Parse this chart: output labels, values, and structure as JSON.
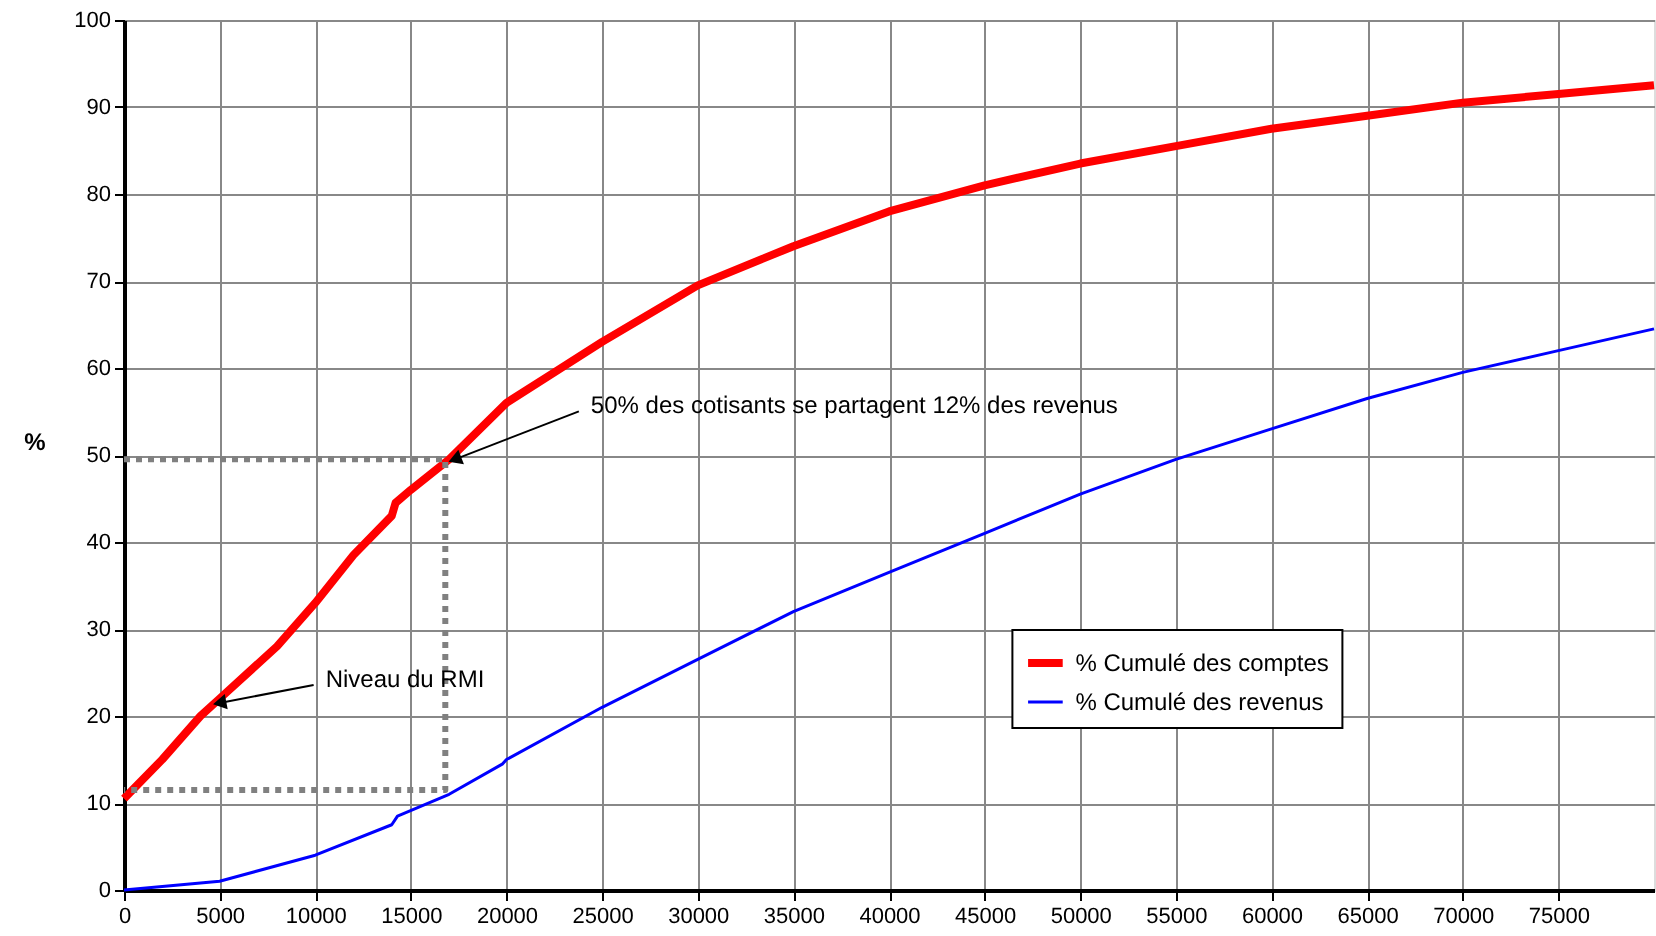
{
  "chart_data": {
    "type": "line",
    "ylabel": "%",
    "xlim": [
      0,
      80000
    ],
    "xticks": [
      0,
      5000,
      10000,
      15000,
      20000,
      25000,
      30000,
      35000,
      40000,
      45000,
      50000,
      55000,
      60000,
      65000,
      70000,
      75000
    ],
    "ylim": [
      0,
      100
    ],
    "yticks": [
      0,
      10,
      20,
      30,
      40,
      50,
      60,
      70,
      80,
      90,
      100
    ],
    "grid": true,
    "legend": "right",
    "marker": "none",
    "series": [
      {
        "name": "% Cumulé des comptes",
        "color": "#ff0000",
        "x": [
          0,
          2000,
          4000,
          5000,
          8000,
          10000,
          12000,
          14000,
          14200,
          15000,
          17000,
          20000,
          22500,
          25000,
          30000,
          35000,
          40000,
          45000,
          50000,
          55000,
          60000,
          65000,
          70000,
          75000,
          80000
        ],
        "values": [
          10.5,
          15,
          20,
          22,
          28,
          33,
          38.5,
          43,
          44.5,
          46,
          49.5,
          56,
          59.5,
          63,
          69.5,
          74,
          78,
          81,
          83.5,
          85.5,
          87.5,
          89,
          90.5,
          91.5,
          92.5
        ]
      },
      {
        "name": "% Cumulé des revenus",
        "color": "#0000ff",
        "x": [
          0,
          5000,
          10000,
          14000,
          14300,
          17000,
          19800,
          20000,
          25000,
          30000,
          35000,
          40000,
          45000,
          50000,
          55000,
          60000,
          65000,
          70000,
          75000,
          80000
        ],
        "values": [
          0,
          1,
          4,
          7.5,
          8.5,
          11,
          14.5,
          15,
          21,
          26.5,
          32,
          36.5,
          41,
          45.5,
          49.5,
          53,
          56.5,
          59.5,
          62,
          64.5
        ]
      },
      {
        "color": "#808080",
        "line_style": "dotted",
        "x": [
          0,
          16800,
          16800,
          0
        ],
        "values": [
          49.5,
          49.5,
          11.5,
          11.5
        ]
      }
    ],
    "annotations": [
      {
        "text": "50% des cotisants se partagent 12% des revenus",
        "x": 17300,
        "y": 49.5
      },
      {
        "text": "Niveau du RMI",
        "x": 5000,
        "y": 21.5
      }
    ]
  }
}
